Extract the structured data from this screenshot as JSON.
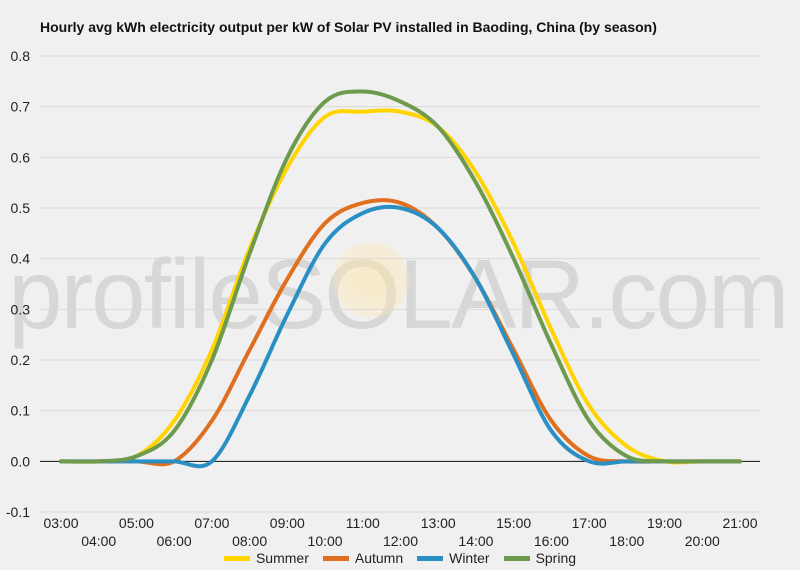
{
  "colors": {
    "background": "#f0f0f0",
    "grid": "#d9d9d9",
    "zero_line": "#111111"
  },
  "watermark": {
    "text": "profileSOLAR.com"
  },
  "chart_data": {
    "type": "line",
    "title": "Hourly avg kWh electricity output per kW of Solar PV installed in Baoding, China (by season)",
    "xlabel": "",
    "ylabel": "",
    "ylim": [
      -0.1,
      0.8
    ],
    "yticks": [
      "-0.1",
      "0.0",
      "0.1",
      "0.2",
      "0.3",
      "0.4",
      "0.5",
      "0.6",
      "0.7",
      "0.8"
    ],
    "x": [
      "03:00",
      "04:00",
      "05:00",
      "06:00",
      "07:00",
      "08:00",
      "09:00",
      "10:00",
      "11:00",
      "12:00",
      "13:00",
      "14:00",
      "15:00",
      "16:00",
      "17:00",
      "18:00",
      "19:00",
      "20:00",
      "21:00"
    ],
    "grid": true,
    "legend_position": "bottom",
    "series": [
      {
        "name": "Summer",
        "color": "#ffd400",
        "values": [
          0.0,
          0.0,
          0.01,
          0.08,
          0.22,
          0.42,
          0.58,
          0.68,
          0.69,
          0.69,
          0.66,
          0.57,
          0.43,
          0.26,
          0.11,
          0.03,
          0.0,
          0.0,
          0.0
        ]
      },
      {
        "name": "Autumn",
        "color": "#e07020",
        "values": [
          0.0,
          0.0,
          0.0,
          0.0,
          0.08,
          0.22,
          0.36,
          0.47,
          0.51,
          0.51,
          0.46,
          0.36,
          0.22,
          0.08,
          0.01,
          0.0,
          0.0,
          0.0,
          0.0
        ]
      },
      {
        "name": "Winter",
        "color": "#2a8fc4",
        "values": [
          0.0,
          0.0,
          0.0,
          0.0,
          0.0,
          0.13,
          0.29,
          0.43,
          0.49,
          0.5,
          0.46,
          0.36,
          0.21,
          0.06,
          0.0,
          0.0,
          0.0,
          0.0,
          0.0
        ]
      },
      {
        "name": "Spring",
        "color": "#6e9a4e",
        "values": [
          0.0,
          0.0,
          0.01,
          0.06,
          0.2,
          0.41,
          0.6,
          0.71,
          0.73,
          0.71,
          0.66,
          0.55,
          0.4,
          0.23,
          0.08,
          0.01,
          0.0,
          0.0,
          0.0
        ]
      }
    ]
  }
}
